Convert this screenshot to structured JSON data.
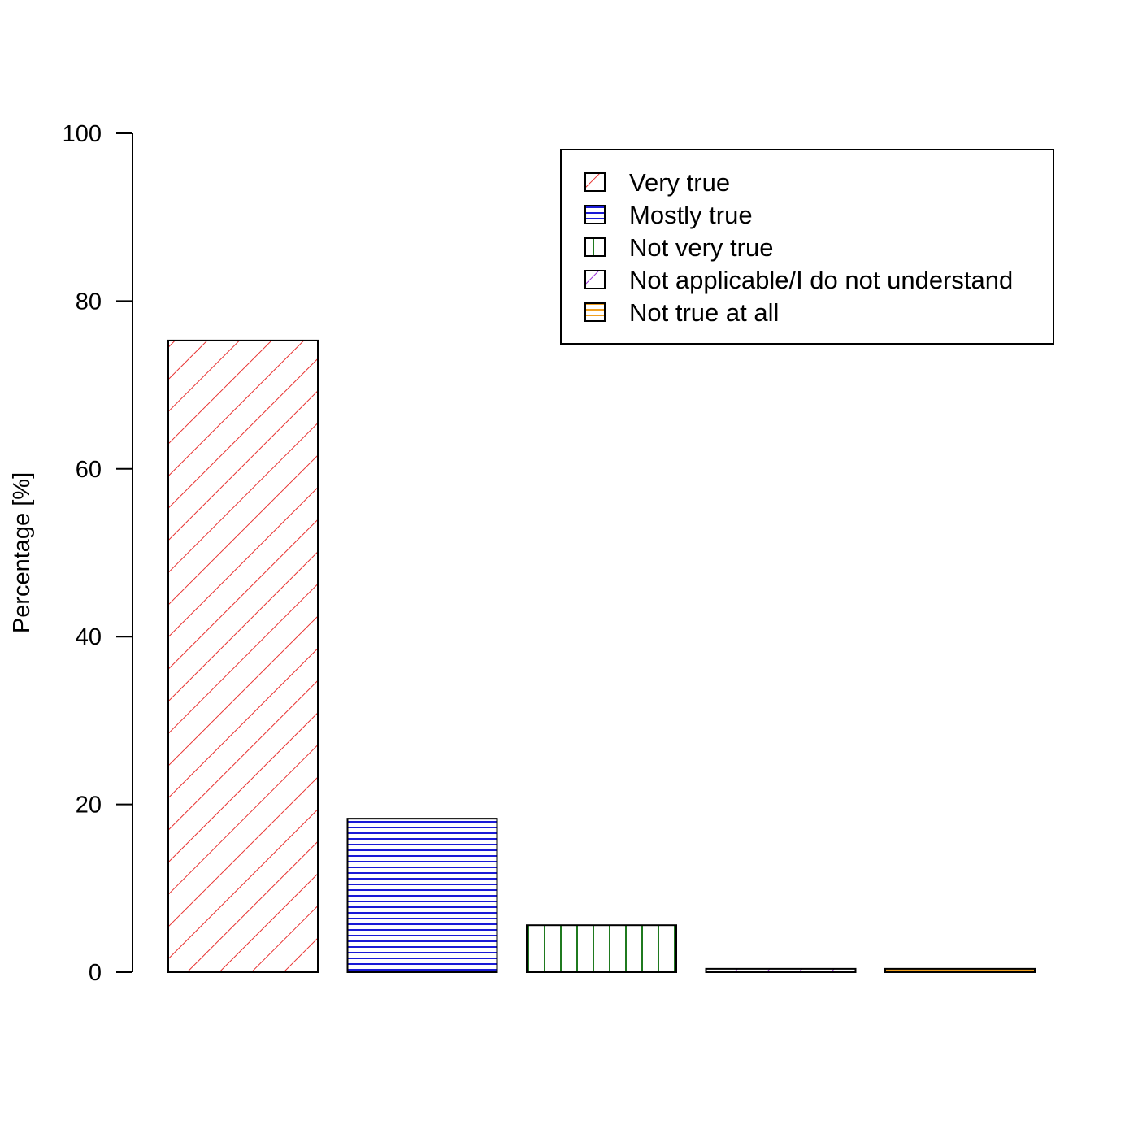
{
  "chart_data": {
    "type": "bar",
    "title": "",
    "xlabel": "",
    "ylabel": "Percentage [%]",
    "ylim": [
      0,
      100
    ],
    "yticks": [
      0,
      20,
      40,
      60,
      80,
      100
    ],
    "grid": false,
    "legend_position": "top-right",
    "categories": [
      "Very true",
      "Mostly true",
      "Not very true",
      "Not applicable/I do not understand",
      "Not true at all"
    ],
    "values": [
      75.3,
      18.3,
      5.6,
      0.4,
      0.4
    ],
    "hatch": [
      "diagonal",
      "horizontal",
      "vertical",
      "diagonal",
      "horizontal"
    ],
    "colors": [
      "#e8302f",
      "#1a1ad6",
      "#1f7a1f",
      "#9b30d9",
      "#f0a020"
    ]
  }
}
